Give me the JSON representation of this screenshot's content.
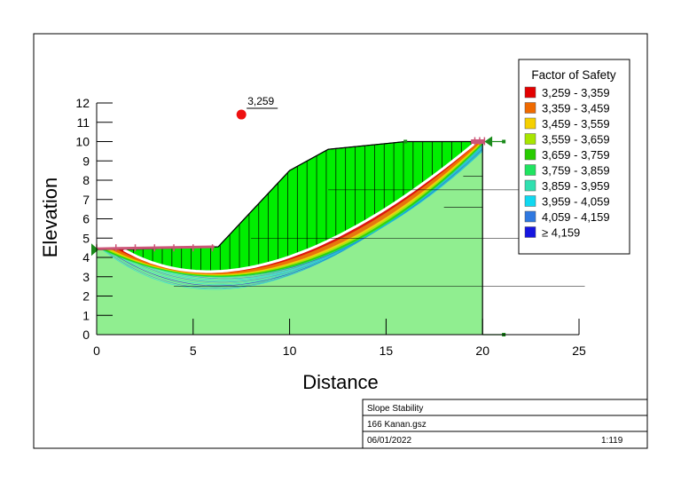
{
  "chart_data": {
    "type": "scatter",
    "title": "",
    "xlabel": "Distance",
    "ylabel": "Elevation",
    "xlim": [
      0,
      25
    ],
    "ylim": [
      0,
      12
    ],
    "x_ticks": [
      0,
      5,
      10,
      15,
      20,
      25
    ],
    "y_ticks": [
      0,
      1,
      2,
      3,
      4,
      5,
      6,
      7,
      8,
      9,
      10,
      11,
      12
    ],
    "grid": false,
    "slip_center": {
      "x": 7.5,
      "y": 11.4,
      "label": "3,259"
    },
    "ground_surface": [
      [
        0,
        4.4
      ],
      [
        6.3,
        4.55
      ],
      [
        10,
        8.5
      ],
      [
        12,
        9.6
      ],
      [
        15,
        9.9
      ],
      [
        16,
        10
      ],
      [
        20,
        10
      ]
    ],
    "legend": {
      "title": "Factor of Safety",
      "position": "top-right",
      "items": [
        {
          "label": "3,259 - 3,359",
          "color": "#e30000"
        },
        {
          "label": "3,359 - 3,459",
          "color": "#f06a00"
        },
        {
          "label": "3,459 - 3,559",
          "color": "#f5d000"
        },
        {
          "label": "3,559 - 3,659",
          "color": "#a8e600"
        },
        {
          "label": "3,659 - 3,759",
          "color": "#28cc00"
        },
        {
          "label": "3,759 - 3,859",
          "color": "#20e460"
        },
        {
          "label": "3,859 - 3,959",
          "color": "#30e0b0"
        },
        {
          "label": "3,959 - 4,059",
          "color": "#10d8f0"
        },
        {
          "label": "4,059 - 4,159",
          "color": "#2f78e0"
        },
        {
          "label": "≥ 4,159",
          "color": "#1515e0"
        }
      ]
    }
  },
  "colors": {
    "sliding_mass": "#00ee00",
    "lower_region": "#90ee90",
    "critical_slip": "#ffffff",
    "pink": "#cc5577",
    "anchor": "#1a8a1a"
  },
  "title_block": {
    "project": "Slope Stability",
    "file": "166 Kanan.gsz",
    "date": "06/01/2022",
    "scale": "1:119"
  }
}
